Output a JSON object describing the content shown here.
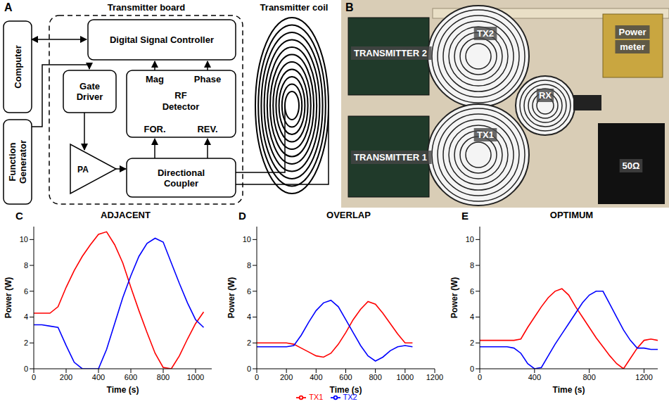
{
  "panels": {
    "A": {
      "letter": "A",
      "board_title": "Transmitter board",
      "coil_label": "Transmitter coil",
      "blocks": {
        "computer": "Computer",
        "controller": "Digital Signal Controller",
        "function_generator": "Function Generator",
        "gate_driver": "Gate Driver",
        "detector_outputs": [
          "Mag",
          "Phase"
        ],
        "detector": "RF Detector",
        "detector_inputs": [
          "FOR.",
          "REV."
        ],
        "amplifier": "PA",
        "coupler": "Directional Coupler"
      }
    },
    "B": {
      "letter": "B",
      "labels": {
        "transmitter2": "TRANSMITTER 2",
        "transmitter1": "TRANSMITTER 1",
        "tx2": "TX2",
        "tx1": "TX1",
        "rx": "RX",
        "power_meter": "Power meter",
        "load": "50Ω"
      }
    }
  },
  "chart_data": [
    {
      "panel": "C",
      "type": "line",
      "title": "ADJACENT",
      "x_label": "Time (s)",
      "y_label": "Power (W)",
      "xlim": [
        0,
        1100
      ],
      "xticks": [
        0,
        200,
        400,
        600,
        800,
        1000
      ],
      "ylim": [
        0,
        11
      ],
      "yticks": [
        0,
        2,
        4,
        6,
        8,
        10
      ],
      "x": [
        0,
        50,
        100,
        150,
        200,
        250,
        300,
        350,
        400,
        450,
        500,
        550,
        600,
        650,
        700,
        750,
        800,
        850,
        900,
        950,
        1000,
        1050
      ],
      "series": [
        {
          "name": "TX1",
          "color": "#ff0000",
          "values": [
            4.3,
            4.3,
            4.3,
            4.8,
            6.3,
            7.6,
            8.7,
            9.6,
            10.4,
            10.6,
            9.6,
            8.2,
            6.3,
            4.5,
            2.8,
            1.2,
            0.1,
            0,
            1,
            2.3,
            3.5,
            4.4
          ]
        },
        {
          "name": "TX2",
          "color": "#0000ff",
          "values": [
            3.4,
            3.4,
            3.3,
            3.2,
            1.8,
            0.5,
            0,
            0,
            0,
            1.5,
            3.5,
            5.5,
            7.2,
            8.7,
            9.7,
            10.1,
            9.8,
            8.2,
            6.6,
            5.1,
            3.8,
            3.2
          ]
        }
      ]
    },
    {
      "panel": "D",
      "type": "line",
      "title": "OVERLAP",
      "x_label": "Time (s)",
      "y_label": "Power (W)",
      "legend": "bottom",
      "xlim": [
        0,
        1200
      ],
      "xticks": [
        0,
        200,
        400,
        600,
        800,
        1000,
        1200
      ],
      "ylim": [
        0,
        11
      ],
      "yticks": [
        0,
        2,
        4,
        6,
        8,
        10
      ],
      "x": [
        0,
        50,
        100,
        150,
        200,
        250,
        300,
        350,
        400,
        450,
        500,
        550,
        600,
        650,
        700,
        750,
        800,
        850,
        900,
        950,
        1000,
        1050
      ],
      "series": [
        {
          "name": "TX1",
          "color": "#ff0000",
          "values": [
            2.0,
            2.0,
            2.0,
            2.0,
            2.0,
            1.9,
            1.6,
            1.3,
            1.0,
            0.9,
            1.2,
            1.9,
            2.8,
            3.8,
            4.6,
            5.2,
            5.0,
            4.3,
            3.5,
            2.7,
            2.0,
            2.0
          ]
        },
        {
          "name": "TX2",
          "color": "#0000ff",
          "values": [
            1.7,
            1.7,
            1.7,
            1.7,
            1.7,
            1.8,
            2.6,
            3.6,
            4.5,
            5.1,
            5.3,
            4.8,
            3.8,
            2.8,
            1.8,
            1.0,
            0.6,
            0.9,
            1.4,
            1.7,
            1.8,
            1.7
          ]
        }
      ]
    },
    {
      "panel": "E",
      "type": "line",
      "title": "OPTIMUM",
      "x_label": "Time (s)",
      "y_label": "Power (W)",
      "xlim": [
        0,
        1300
      ],
      "xticks": [
        0,
        400,
        800,
        1200
      ],
      "ylim": [
        0,
        11
      ],
      "yticks": [
        0,
        2,
        4,
        6,
        8,
        10
      ],
      "x": [
        0,
        50,
        100,
        150,
        200,
        250,
        300,
        350,
        400,
        450,
        500,
        550,
        600,
        650,
        700,
        750,
        800,
        850,
        900,
        950,
        1000,
        1050,
        1100,
        1150,
        1200,
        1250,
        1300
      ],
      "series": [
        {
          "name": "TX1",
          "color": "#ff0000",
          "values": [
            2.2,
            2.2,
            2.2,
            2.2,
            2.2,
            2.2,
            2.3,
            3.2,
            4.0,
            4.8,
            5.5,
            6.0,
            6.2,
            5.7,
            4.8,
            4.0,
            3.2,
            2.4,
            1.7,
            1.0,
            0.4,
            0,
            0.8,
            1.6,
            2.2,
            2.3,
            2.2
          ]
        },
        {
          "name": "TX2",
          "color": "#0000ff",
          "values": [
            1.7,
            1.7,
            1.7,
            1.7,
            1.7,
            1.6,
            1.2,
            0.4,
            0,
            0.1,
            1.0,
            1.9,
            2.7,
            3.5,
            4.3,
            5.1,
            5.7,
            6.0,
            6.0,
            5.0,
            4.0,
            3.0,
            2.2,
            1.6,
            1.6,
            1.5,
            1.5
          ]
        }
      ]
    }
  ]
}
